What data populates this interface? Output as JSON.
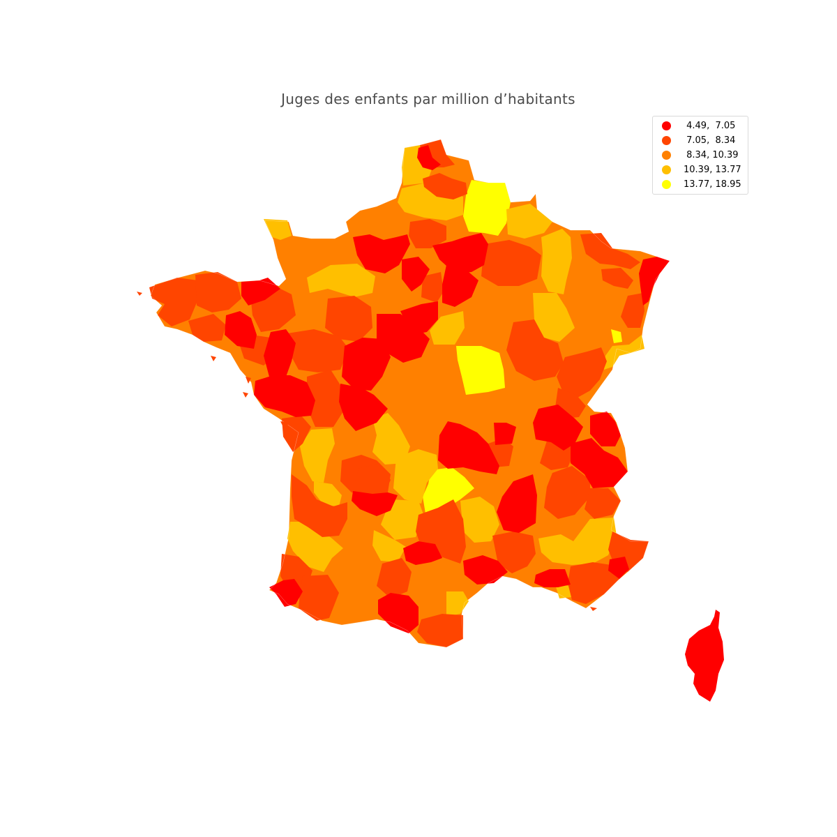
{
  "title": "Juges des enfants par million d’habitants",
  "legend": {
    "items": [
      {
        "label": " 4.49,  7.05",
        "color": "#ff0000"
      },
      {
        "label": " 7.05,  8.34",
        "color": "#ff4500"
      },
      {
        "label": " 8.34, 10.39",
        "color": "#ff8000"
      },
      {
        "label": "10.39, 13.77",
        "color": "#ffbf00"
      },
      {
        "label": "13.77, 18.95",
        "color": "#ffff00"
      }
    ]
  },
  "chart_data": {
    "type": "choropleth",
    "title": "Juges des enfants par million d’habitants",
    "region": "France (départements)",
    "classes": [
      {
        "range": [
          4.49,
          7.05
        ],
        "color": "#ff0000"
      },
      {
        "range": [
          7.05,
          8.34
        ],
        "color": "#ff4500"
      },
      {
        "range": [
          8.34,
          10.39
        ],
        "color": "#ff8000"
      },
      {
        "range": [
          10.39,
          13.77
        ],
        "color": "#ffbf00"
      },
      {
        "range": [
          13.77,
          18.95
        ],
        "color": "#ffff00"
      }
    ],
    "legend_placement": "top-right",
    "axes": "off"
  }
}
